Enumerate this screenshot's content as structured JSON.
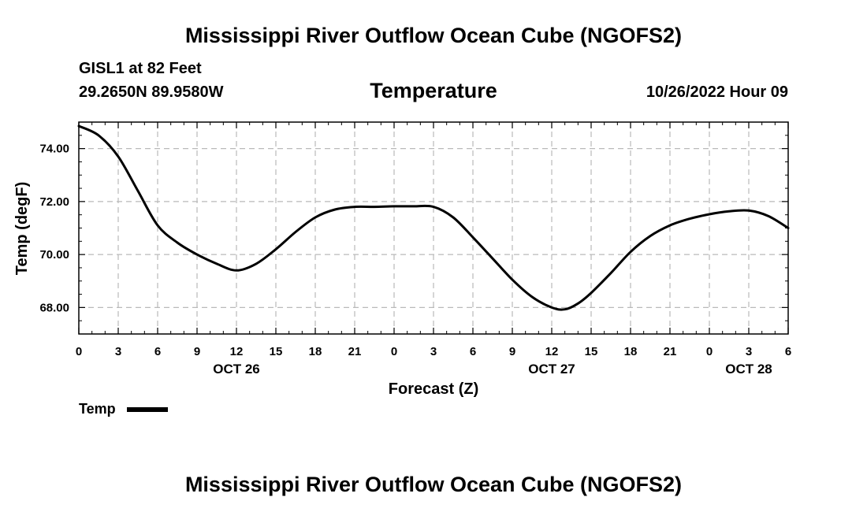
{
  "header": {
    "title": "Mississippi River Outflow Ocean Cube (NGOFS2)",
    "station": "GISL1 at 82 Feet",
    "coords": "29.2650N  89.9580W",
    "variable": "Temperature",
    "datetime": "10/26/2022 Hour 09"
  },
  "footer": {
    "title": "Mississippi River Outflow Ocean Cube (NGOFS2)"
  },
  "legend": {
    "label": "Temp"
  },
  "chart_data": {
    "type": "line",
    "title": "Temperature",
    "xlabel": "Forecast (Z)",
    "ylabel": "Temp (degF)",
    "xlim": [
      0,
      54
    ],
    "ylim": [
      67.0,
      75.0
    ],
    "grid": true,
    "legend_position": "bottom-left",
    "x_tick_values": [
      0,
      3,
      6,
      9,
      12,
      15,
      18,
      21,
      24,
      27,
      30,
      33,
      36,
      39,
      42,
      45,
      48,
      51,
      54
    ],
    "x_tick_labels": [
      "0",
      "3",
      "6",
      "9",
      "12",
      "15",
      "18",
      "21",
      "0",
      "3",
      "6",
      "9",
      "12",
      "15",
      "18",
      "21",
      "0",
      "3",
      "6"
    ],
    "y_tick_values": [
      68,
      70,
      72,
      74
    ],
    "y_tick_labels": [
      "68.00",
      "70.00",
      "72.00",
      "74.00"
    ],
    "date_labels": [
      {
        "x": 12,
        "label": "OCT 26"
      },
      {
        "x": 36,
        "label": "OCT 27"
      },
      {
        "x": 51,
        "label": "OCT 28"
      }
    ],
    "series": [
      {
        "name": "Temp",
        "color": "#000000",
        "x": [
          0,
          1.5,
          3,
          4.5,
          6,
          7.5,
          9,
          10.5,
          12,
          13.5,
          15,
          16.5,
          18,
          19.5,
          21,
          22.5,
          24,
          25.5,
          27,
          28.5,
          30,
          31.5,
          33,
          34.5,
          36,
          37,
          38,
          39,
          40.5,
          42,
          43.5,
          45,
          46.5,
          48,
          49.5,
          51,
          52.5,
          54
        ],
        "values": [
          74.85,
          74.5,
          73.7,
          72.4,
          71.1,
          70.45,
          70.0,
          69.65,
          69.4,
          69.65,
          70.2,
          70.85,
          71.4,
          71.7,
          71.8,
          71.8,
          71.82,
          71.82,
          71.8,
          71.4,
          70.65,
          69.85,
          69.05,
          68.4,
          68.0,
          67.93,
          68.15,
          68.55,
          69.3,
          70.1,
          70.7,
          71.1,
          71.35,
          71.52,
          71.63,
          71.66,
          71.45,
          71.0
        ]
      }
    ]
  }
}
